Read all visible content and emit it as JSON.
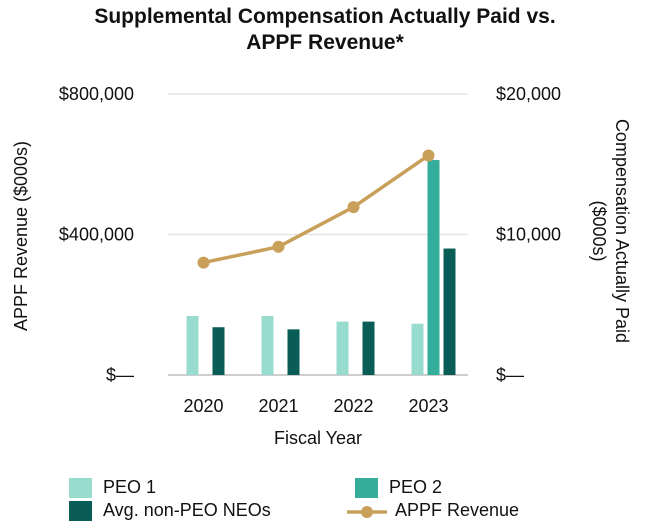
{
  "chart_data": {
    "type": "bar+line",
    "title_line1": "Supplemental Compensation Actually Paid vs.",
    "title_line2": "APPF Revenue*",
    "xlabel": "Fiscal Year",
    "ylabel_left": "APPF Revenue ($000s)",
    "ylabel_right_line1": "Compensation Actually Paid",
    "ylabel_right_line2": "($000s)",
    "categories": [
      "2020",
      "2021",
      "2022",
      "2023"
    ],
    "left_axis": {
      "ylim": [
        0,
        800000
      ],
      "ticks": [
        0,
        400000,
        800000
      ],
      "tick_labels": [
        "$—",
        "$400,000",
        "$800,000"
      ]
    },
    "right_axis": {
      "ylim": [
        0,
        20000
      ],
      "ticks": [
        0,
        10000,
        20000
      ],
      "tick_labels": [
        "$—",
        "$10,000",
        "$20,000"
      ]
    },
    "series": [
      {
        "name": "PEO 1",
        "type": "bar",
        "axis": "right",
        "color": "#98dccf",
        "values": [
          4200,
          4200,
          3800,
          3650
        ]
      },
      {
        "name": "PEO 2",
        "type": "bar",
        "axis": "right",
        "color": "#34ae9a",
        "values": [
          null,
          null,
          null,
          15300
        ]
      },
      {
        "name": "Avg. non-PEO NEOs",
        "type": "bar",
        "axis": "right",
        "color": "#0a5d56",
        "values": [
          3400,
          3250,
          3800,
          9000
        ]
      },
      {
        "name": "APPF Revenue",
        "type": "line",
        "axis": "left",
        "color": "#c9a05a",
        "values": [
          320000,
          365000,
          478000,
          625000
        ]
      }
    ],
    "grid": true,
    "legend_position": "bottom"
  }
}
